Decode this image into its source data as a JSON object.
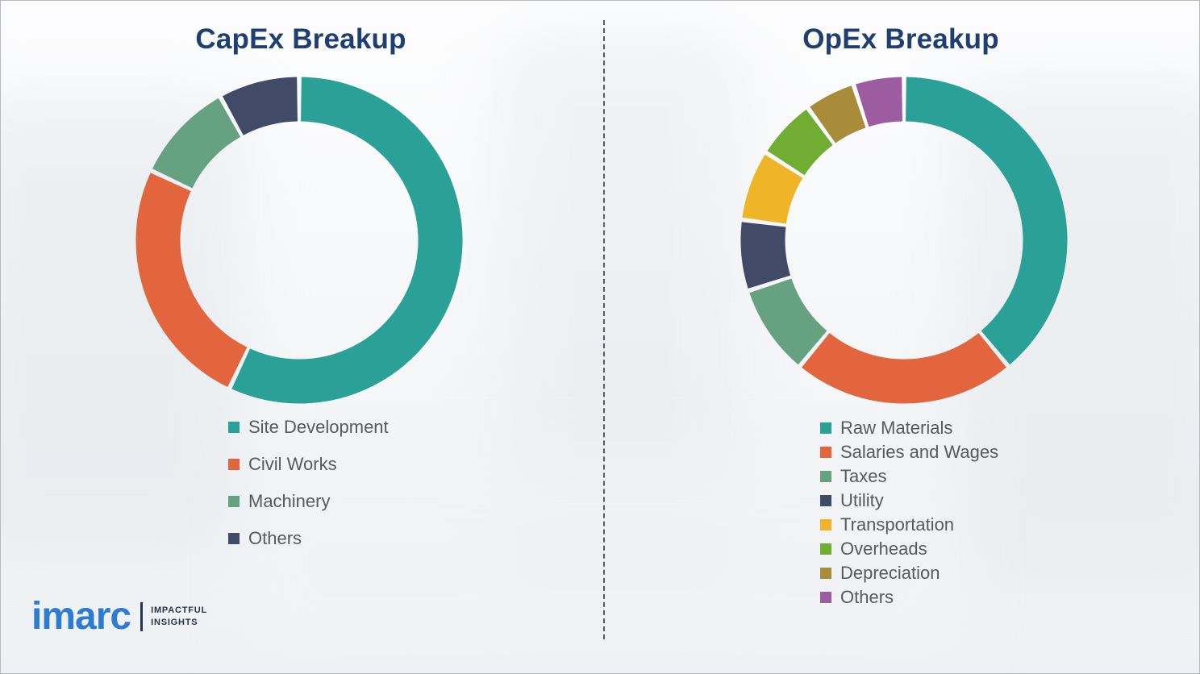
{
  "theme": {
    "title_color": "#1e3f6f",
    "legend_text_color": "#595959",
    "brand_blue": "#2d7cd1",
    "background": "#f4f6f8"
  },
  "chart_data": [
    {
      "type": "pie",
      "donut": true,
      "title": "CapEx Breakup",
      "labels": [
        "Site Development",
        "Civil Works",
        "Machinery",
        "Others"
      ],
      "values": [
        57,
        25,
        10,
        8
      ],
      "colors": [
        "#2aa096",
        "#e2653e",
        "#66a182",
        "#414a66"
      ],
      "legend_position": "bottom",
      "start_angle_deg": 0,
      "direction": "clockwise"
    },
    {
      "type": "pie",
      "donut": true,
      "title": "OpEx Breakup",
      "labels": [
        "Raw Materials",
        "Salaries and Wages",
        "Taxes",
        "Utility",
        "Transportation",
        "Overheads",
        "Depreciation",
        "Others"
      ],
      "values": [
        39,
        22,
        9,
        7,
        7,
        6,
        5,
        5
      ],
      "colors": [
        "#2aa096",
        "#e2653e",
        "#66a182",
        "#414a66",
        "#f0b429",
        "#72ad33",
        "#a88c3a",
        "#9d5ba0"
      ],
      "legend_position": "bottom",
      "start_angle_deg": 0,
      "direction": "clockwise"
    }
  ],
  "logo": {
    "brand": "imarc",
    "tagline": [
      "IMPACTFUL",
      "INSIGHTS"
    ]
  }
}
